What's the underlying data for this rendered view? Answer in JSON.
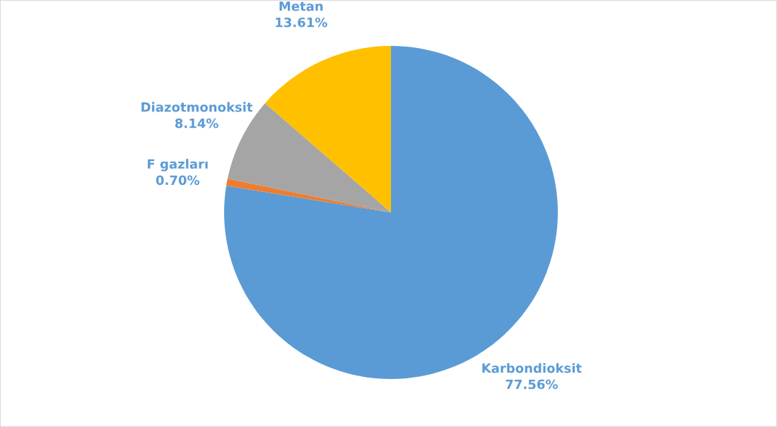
{
  "chart_data": {
    "type": "pie",
    "categories": [
      "Karbondioksit",
      "F gazları",
      "Diazotmonoksit",
      "Metan"
    ],
    "values": [
      77.56,
      0.7,
      8.14,
      13.61
    ],
    "colors": [
      "#5b9bd5",
      "#ed7d31",
      "#a5a5a5",
      "#ffc000"
    ],
    "value_labels": [
      "77.56%",
      "0.70%",
      "8.14%",
      "13.61%"
    ],
    "legend": false
  }
}
